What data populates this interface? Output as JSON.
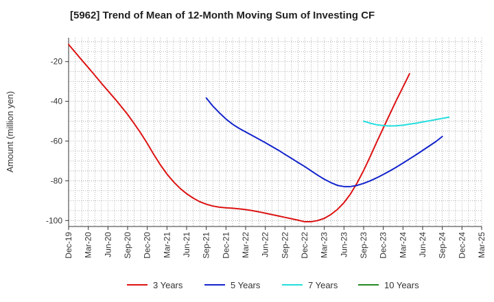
{
  "chart_data": {
    "type": "line",
    "title": "[5962]  Trend of Mean of 12-Month Moving Sum of Investing CF",
    "xlabel": "",
    "ylabel": "Amount (million yen)",
    "ylim": [
      -103,
      -8
    ],
    "yticks": [
      -100,
      -80,
      -60,
      -40,
      -20
    ],
    "ytick_labels": [
      "-100",
      "-80",
      "-60",
      "-40",
      "-20"
    ],
    "x_start": "Dec-19",
    "x_end": "Mar-25",
    "x_months": 63,
    "xtick_labels": [
      "Dec-19",
      "Mar-20",
      "Jun-20",
      "Sep-20",
      "Dec-20",
      "Mar-21",
      "Jun-21",
      "Sep-21",
      "Dec-21",
      "Mar-22",
      "Jun-22",
      "Sep-22",
      "Dec-22",
      "Mar-23",
      "Jun-23",
      "Sep-23",
      "Dec-23",
      "Mar-24",
      "Jun-24",
      "Sep-24",
      "Dec-24",
      "Mar-25"
    ],
    "grid": true,
    "legend_position": "bottom",
    "series": [
      {
        "name": "3 Years",
        "color": "#dd1111",
        "x_offset": 0,
        "values": [
          -11.4,
          -15.3,
          -19.2,
          -23.0,
          -26.9,
          -30.9,
          -34.7,
          -38.5,
          -42.5,
          -46.6,
          -51.2,
          -56.0,
          -61.2,
          -66.8,
          -72.0,
          -76.6,
          -80.5,
          -83.8,
          -86.5,
          -88.7,
          -90.5,
          -91.8,
          -92.7,
          -93.3,
          -93.6,
          -93.8,
          -94.1,
          -94.5,
          -95.0,
          -95.6,
          -96.3,
          -97.0,
          -97.7,
          -98.4,
          -99.1,
          -99.8,
          -100.6,
          -100.6,
          -100.0,
          -98.9,
          -97.0,
          -94.4,
          -91.0,
          -86.6,
          -81.1,
          -74.8,
          -67.8,
          -60.5,
          -53.4,
          -46.4,
          -39.4,
          -32.8,
          -26.1
        ]
      },
      {
        "name": "5 Years",
        "color": "#1122cc",
        "x_offset": 21,
        "values": [
          -38.3,
          -42.4,
          -45.8,
          -48.9,
          -51.5,
          -53.6,
          -55.4,
          -57.2,
          -59.0,
          -60.8,
          -62.7,
          -64.6,
          -66.7,
          -68.7,
          -70.8,
          -72.8,
          -75.0,
          -77.2,
          -79.2,
          -80.9,
          -82.3,
          -82.9,
          -82.9,
          -82.3,
          -81.3,
          -80.0,
          -78.5,
          -76.8,
          -75.0,
          -73.1,
          -71.1,
          -69.0,
          -66.9,
          -64.7,
          -62.5,
          -60.3,
          -57.7
        ]
      },
      {
        "name": "7 Years",
        "color": "#22dddd",
        "x_offset": 45,
        "values": [
          -50.0,
          -51.0,
          -51.8,
          -52.2,
          -52.4,
          -52.3,
          -52.0,
          -51.5,
          -51.0,
          -50.4,
          -49.8,
          -49.2,
          -48.6,
          -48.0
        ]
      },
      {
        "name": "10 Years",
        "color": "#228822",
        "x_offset": 0,
        "values": []
      }
    ]
  }
}
